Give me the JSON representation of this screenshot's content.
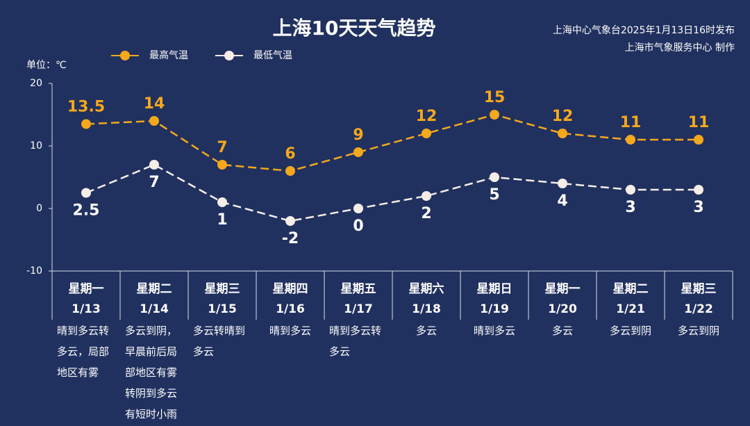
{
  "chart_data": {
    "type": "line",
    "title": "上海10天天气趋势",
    "subtitle": [
      "上海中心气象台2025年1月13日16时发布",
      "上海市气象服务中心 制作"
    ],
    "y_label": "单位：℃",
    "categories": [
      "星期一",
      "星期二",
      "星期三",
      "星期四",
      "星期五",
      "星期六",
      "星期日",
      "星期一",
      "星期二",
      "星期三"
    ],
    "dates": [
      "1/13",
      "1/14",
      "1/15",
      "1/16",
      "1/17",
      "1/18",
      "1/19",
      "1/20",
      "1/21",
      "1/22"
    ],
    "weather": [
      "晴到多云转多云，局部地区有雾",
      "多云到阴，早晨前后局部地区有雾转阴到多云有短时小雨",
      "多云转晴到多云",
      "晴到多云",
      "晴到多云转多云",
      "多云",
      "晴到多云",
      "多云",
      "多云到阴",
      "多云到阴"
    ],
    "series": [
      {
        "name": "最高气温",
        "color": "#f5a81c",
        "values": [
          13.5,
          14,
          7,
          6,
          9,
          12,
          15,
          12,
          11,
          11
        ]
      },
      {
        "name": "最低气温",
        "color": "#f5ede7",
        "values": [
          2.5,
          7,
          1,
          -2,
          0,
          2,
          5,
          4,
          3,
          3
        ]
      }
    ],
    "ylim": [
      -10,
      20
    ],
    "yticks": [
      -10,
      0,
      10,
      20
    ]
  }
}
